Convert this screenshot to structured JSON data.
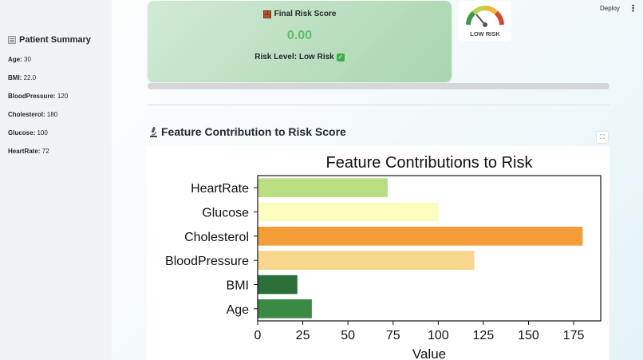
{
  "header": {
    "deploy_label": "Deploy",
    "menu_icon": "kebab-icon"
  },
  "sidebar": {
    "title": "Patient Summary",
    "title_icon": "clipboard-icon",
    "items": [
      {
        "label": "Age:",
        "value": "30"
      },
      {
        "label": "BMI:",
        "value": "22.0"
      },
      {
        "label": "BloodPressure:",
        "value": "120"
      },
      {
        "label": "Cholesterol:",
        "value": "180"
      },
      {
        "label": "Glucose:",
        "value": "100"
      },
      {
        "label": "HeartRate:",
        "value": "72"
      }
    ]
  },
  "risk_card": {
    "title": "Final Risk Score",
    "title_icon": "brick-icon",
    "score": "0.00",
    "level_text": "Risk Level: Low Risk",
    "level_icon": "check-icon",
    "accent": "#5cbf6a"
  },
  "gauge": {
    "label": "LOW RISK",
    "icon": "risk-gauge-icon"
  },
  "progress": {
    "fraction": 0.0,
    "color": "#3a9a4a"
  },
  "section": {
    "title": "Feature Contribution to Risk Score",
    "icon": "microscope-icon"
  },
  "chart_data": {
    "type": "bar",
    "orientation": "horizontal",
    "title": "Feature Contributions to Risk",
    "xlabel": "Value",
    "ylabel": "",
    "categories": [
      "HeartRate",
      "Glucose",
      "Cholesterol",
      "BloodPressure",
      "BMI",
      "Age"
    ],
    "values": [
      72,
      100,
      180,
      120,
      22,
      30
    ],
    "colors": [
      "#b9df82",
      "#fbfdbe",
      "#f29d37",
      "#f8d68d",
      "#2c6e3a",
      "#3a8a46"
    ],
    "xlim": [
      0,
      190
    ],
    "xticks": [
      0,
      25,
      50,
      75,
      100,
      125,
      150,
      175
    ],
    "grid": false
  }
}
